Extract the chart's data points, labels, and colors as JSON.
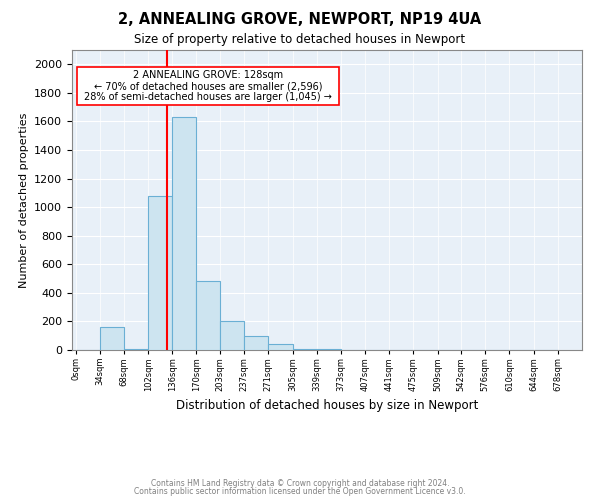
{
  "title_line1": "2, ANNEALING GROVE, NEWPORT, NP19 4UA",
  "title_line2": "Size of property relative to detached houses in Newport",
  "xlabel": "Distribution of detached houses by size in Newport",
  "ylabel": "Number of detached properties",
  "footer1": "Contains HM Land Registry data © Crown copyright and database right 2024.",
  "footer2": "Contains public sector information licensed under the Open Government Licence v3.0.",
  "annotation_line1": "2 ANNEALING GROVE: 128sqm",
  "annotation_line2": "← 70% of detached houses are smaller (2,596)",
  "annotation_line3": "28% of semi-detached houses are larger (1,045) →",
  "bar_color": "#cde4f0",
  "bar_edge_color": "#6aafd4",
  "axes_bg_color": "#e8f0f8",
  "red_line_x": 128,
  "ylim": [
    0,
    2100
  ],
  "yticks": [
    0,
    200,
    400,
    600,
    800,
    1000,
    1200,
    1400,
    1600,
    1800,
    2000
  ],
  "bin_edges": [
    0,
    34,
    68,
    102,
    136,
    170,
    203,
    237,
    271,
    305,
    339,
    373,
    407,
    441,
    475,
    509,
    542,
    576,
    610,
    644,
    678
  ],
  "bar_heights": [
    0,
    160,
    5,
    1080,
    1630,
    480,
    200,
    100,
    40,
    10,
    5,
    2,
    1,
    0,
    0,
    0,
    0,
    0,
    0,
    0
  ],
  "xlim": [
    -5,
    712
  ]
}
